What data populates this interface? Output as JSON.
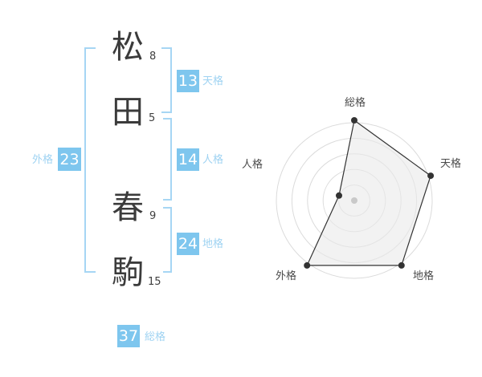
{
  "colors": {
    "accent_blue": "#7ec6ee",
    "label_blue": "#9fd3f2",
    "bracket_blue": "#a6d6f4",
    "ink": "#3b3b3b",
    "ring_gray": "#dbdbdb",
    "polygon_fill": "#e9e9e9",
    "polygon_stroke": "#333333",
    "center_dot": "#c9c9c9",
    "radar_label": "#4a4a4a"
  },
  "name": {
    "characters": [
      {
        "char": "松",
        "strokes": "8"
      },
      {
        "char": "田",
        "strokes": "5"
      },
      {
        "char": "春",
        "strokes": "9"
      },
      {
        "char": "駒",
        "strokes": "15"
      }
    ]
  },
  "kaku": {
    "tenkaku": {
      "label": "天格",
      "value": "13"
    },
    "jinkaku": {
      "label": "人格",
      "value": "14"
    },
    "chikaku": {
      "label": "地格",
      "value": "24"
    },
    "gaikaku": {
      "label": "外格",
      "value": "23"
    },
    "soukaku": {
      "label": "総格",
      "value": "37"
    }
  },
  "chart_data": {
    "type": "radar",
    "axes": [
      "総格",
      "天格",
      "地格",
      "外格",
      "人格"
    ],
    "values": [
      5,
      5,
      5,
      5,
      1
    ],
    "max": 5,
    "rings": 5,
    "grid": "concentric-circles",
    "legend": "none"
  }
}
